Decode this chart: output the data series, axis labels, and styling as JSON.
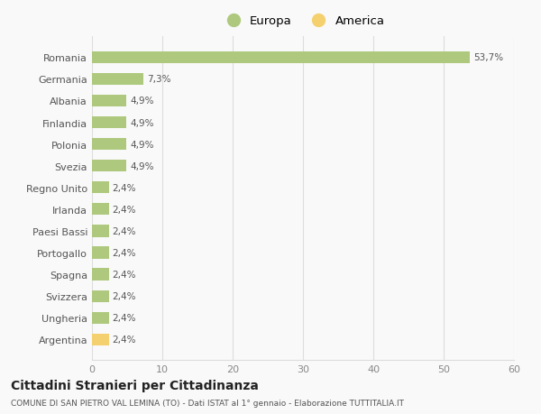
{
  "categories": [
    "Romania",
    "Germania",
    "Albania",
    "Finlandia",
    "Polonia",
    "Svezia",
    "Regno Unito",
    "Irlanda",
    "Paesi Bassi",
    "Portogallo",
    "Spagna",
    "Svizzera",
    "Ungheria",
    "Argentina"
  ],
  "values": [
    53.7,
    7.3,
    4.9,
    4.9,
    4.9,
    4.9,
    2.4,
    2.4,
    2.4,
    2.4,
    2.4,
    2.4,
    2.4,
    2.4
  ],
  "labels": [
    "53,7%",
    "7,3%",
    "4,9%",
    "4,9%",
    "4,9%",
    "4,9%",
    "2,4%",
    "2,4%",
    "2,4%",
    "2,4%",
    "2,4%",
    "2,4%",
    "2,4%",
    "2,4%"
  ],
  "colors": [
    "#aec97e",
    "#aec97e",
    "#aec97e",
    "#aec97e",
    "#aec97e",
    "#aec97e",
    "#aec97e",
    "#aec97e",
    "#aec97e",
    "#aec97e",
    "#aec97e",
    "#aec97e",
    "#aec97e",
    "#f5d06e"
  ],
  "europa_color": "#aec97e",
  "america_color": "#f5d06e",
  "background_color": "#f9f9f9",
  "grid_color": "#dddddd",
  "xlim": [
    0,
    60
  ],
  "xticks": [
    0,
    10,
    20,
    30,
    40,
    50,
    60
  ],
  "title": "Cittadini Stranieri per Cittadinanza",
  "subtitle": "COMUNE DI SAN PIETRO VAL LEMINA (TO) - Dati ISTAT al 1° gennaio - Elaborazione TUTTITALIA.IT",
  "legend_europa": "Europa",
  "legend_america": "America"
}
